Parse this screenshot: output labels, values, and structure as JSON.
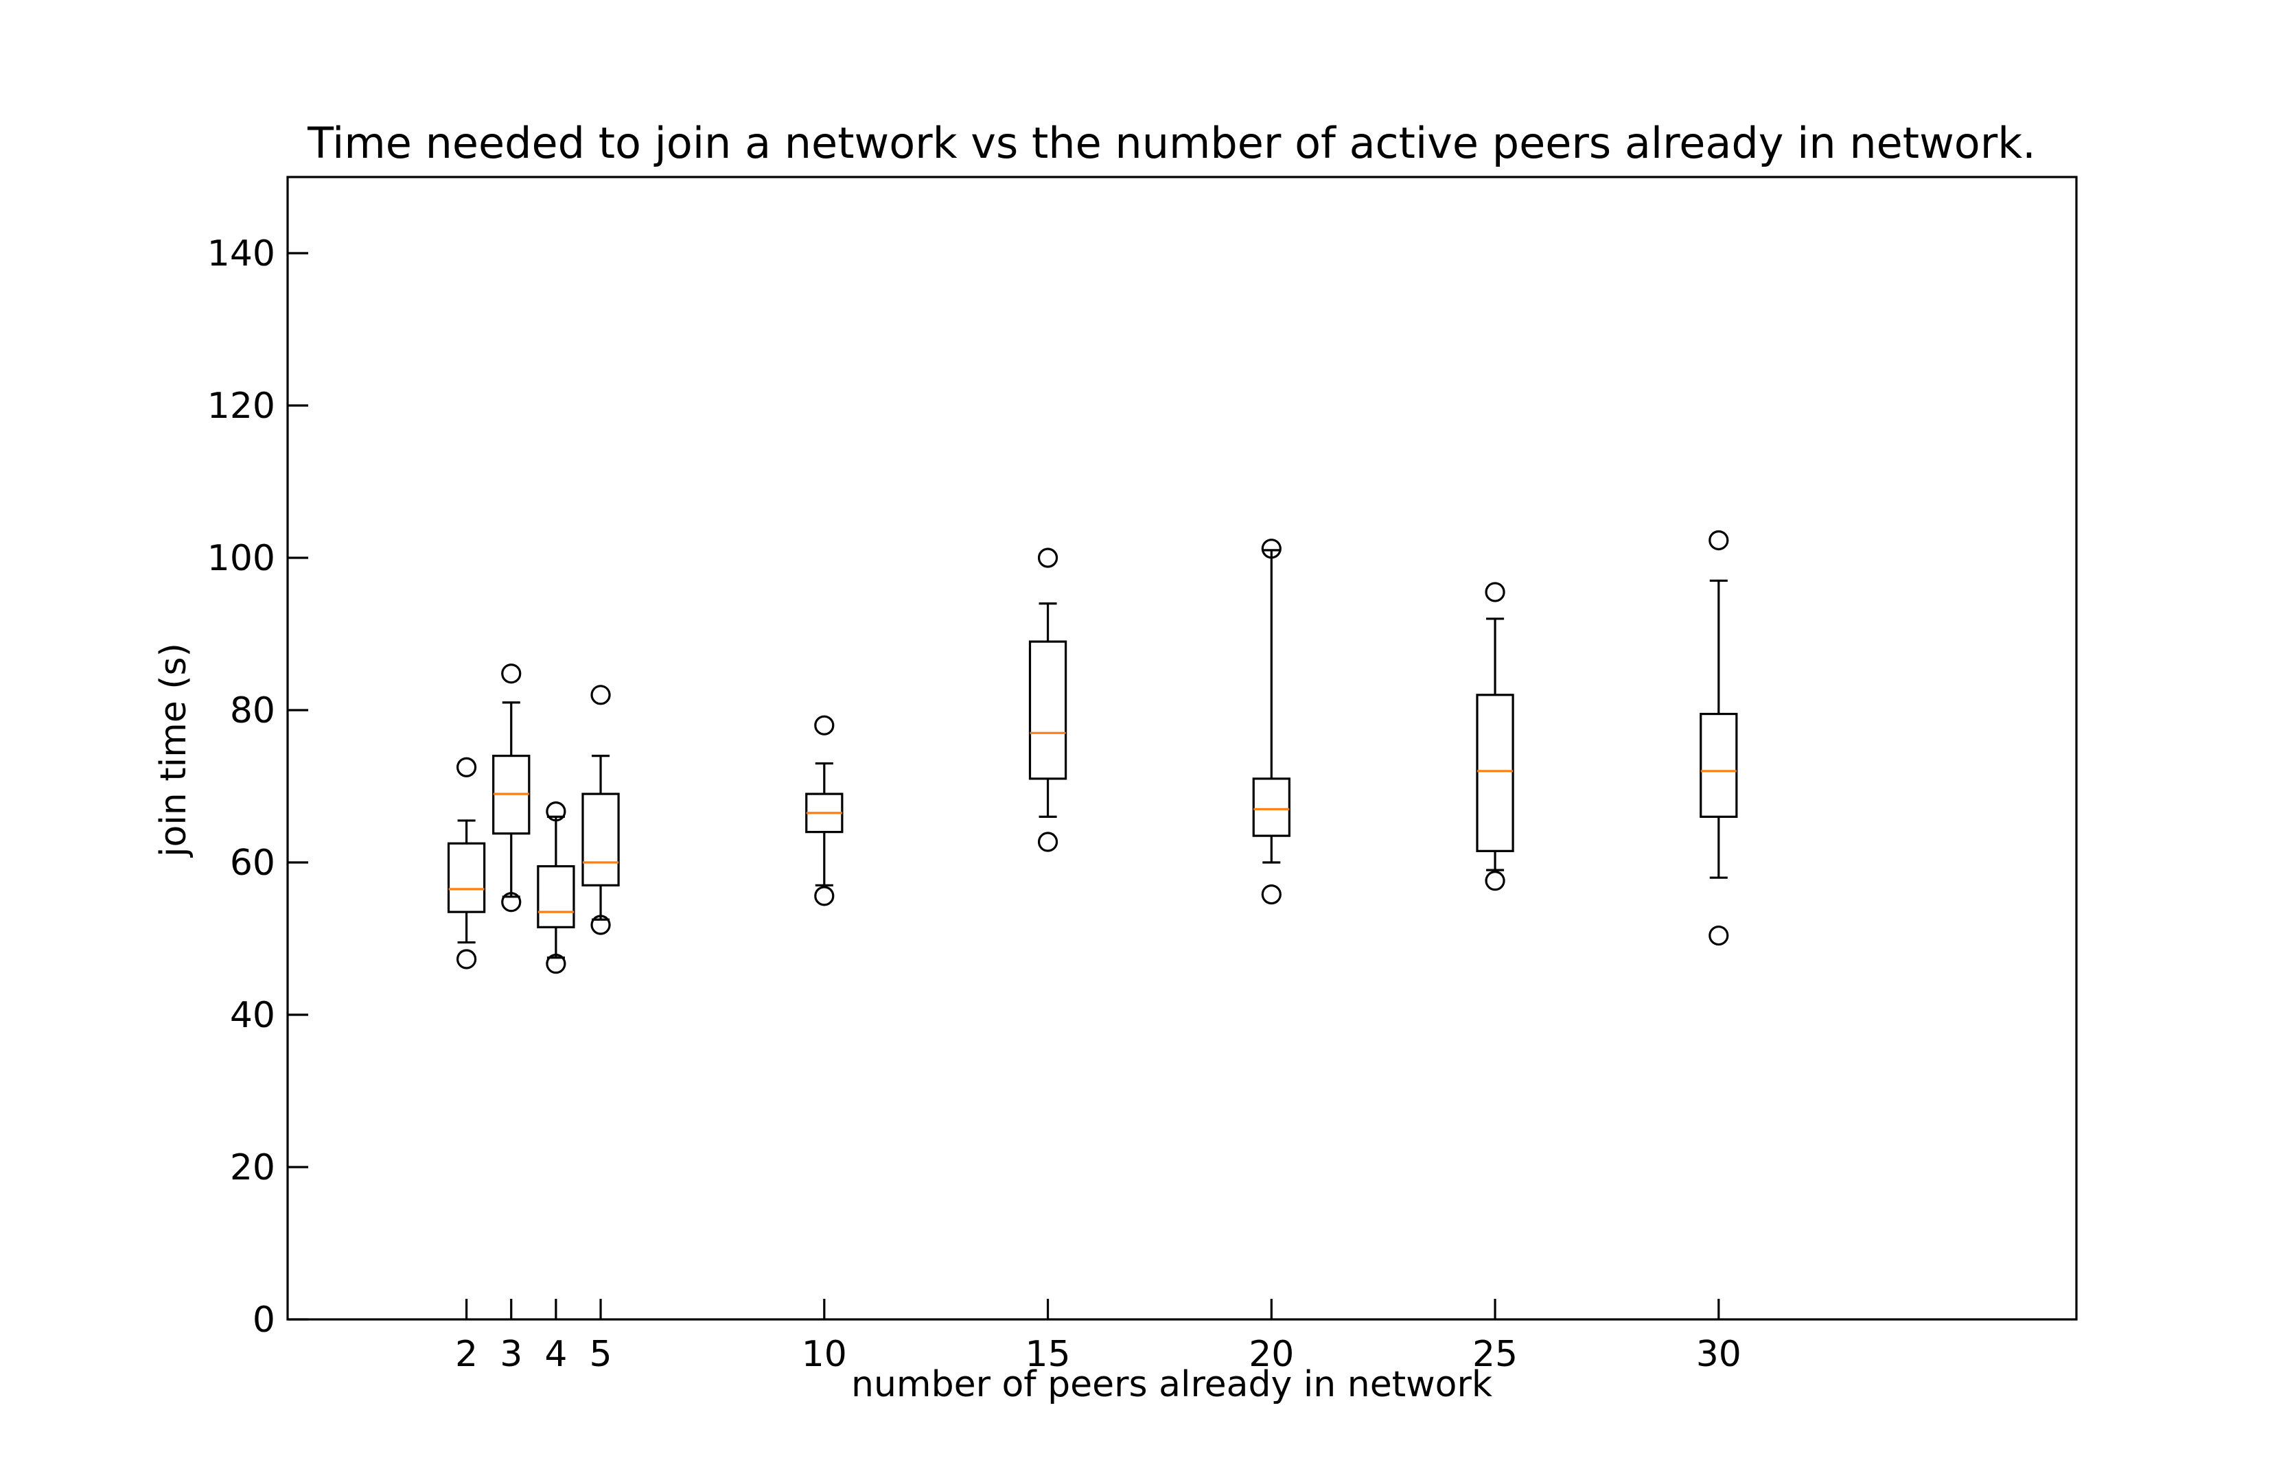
{
  "chart_data": {
    "type": "box",
    "title": "Time needed to join a network vs the number of active peers already in network.",
    "xlabel": "number of peers already in network",
    "ylabel": "join time (s)",
    "xlim": [
      -2,
      38
    ],
    "ylim": [
      0,
      150
    ],
    "yticks": [
      0,
      20,
      40,
      60,
      80,
      100,
      120,
      140
    ],
    "grid": false,
    "legend": "none",
    "box_color": "#000000",
    "median_color": "#ff7f0e",
    "boxes": [
      {
        "x": 2,
        "label": "2",
        "whisker_low": 49.5,
        "q1": 53.5,
        "median": 56.5,
        "q3": 62.5,
        "whisker_high": 65.5,
        "fliers": [
          72.5,
          47.3
        ]
      },
      {
        "x": 3,
        "label": "3",
        "whisker_low": 55.5,
        "q1": 63.8,
        "median": 69.0,
        "q3": 74.0,
        "whisker_high": 81.0,
        "fliers": [
          84.8,
          54.8
        ]
      },
      {
        "x": 4,
        "label": "4",
        "whisker_low": 47.5,
        "q1": 51.5,
        "median": 53.5,
        "q3": 59.5,
        "whisker_high": 66.0,
        "fliers": [
          66.7,
          46.7
        ]
      },
      {
        "x": 5,
        "label": "5",
        "whisker_low": 52.5,
        "q1": 57.0,
        "median": 60.0,
        "q3": 69.0,
        "whisker_high": 74.0,
        "fliers": [
          82.0,
          51.8
        ]
      },
      {
        "x": 10,
        "label": "10",
        "whisker_low": 57.0,
        "q1": 64.0,
        "median": 66.5,
        "q3": 69.0,
        "whisker_high": 73.0,
        "fliers": [
          78.0,
          55.6
        ]
      },
      {
        "x": 15,
        "label": "15",
        "whisker_low": 66.0,
        "q1": 71.0,
        "median": 77.0,
        "q3": 89.0,
        "whisker_high": 94.0,
        "fliers": [
          100.0,
          62.7
        ]
      },
      {
        "x": 20,
        "label": "20",
        "whisker_low": 60.0,
        "q1": 63.5,
        "median": 67.0,
        "q3": 71.0,
        "whisker_high": 101.0,
        "fliers": [
          101.2,
          55.8
        ]
      },
      {
        "x": 25,
        "label": "25",
        "whisker_low": 59.0,
        "q1": 61.5,
        "median": 72.0,
        "q3": 82.0,
        "whisker_high": 92.0,
        "fliers": [
          95.5,
          57.6
        ]
      },
      {
        "x": 30,
        "label": "30",
        "whisker_low": 58.0,
        "q1": 66.0,
        "median": 72.0,
        "q3": 79.5,
        "whisker_high": 97.0,
        "fliers": [
          102.3,
          50.4
        ]
      }
    ]
  }
}
